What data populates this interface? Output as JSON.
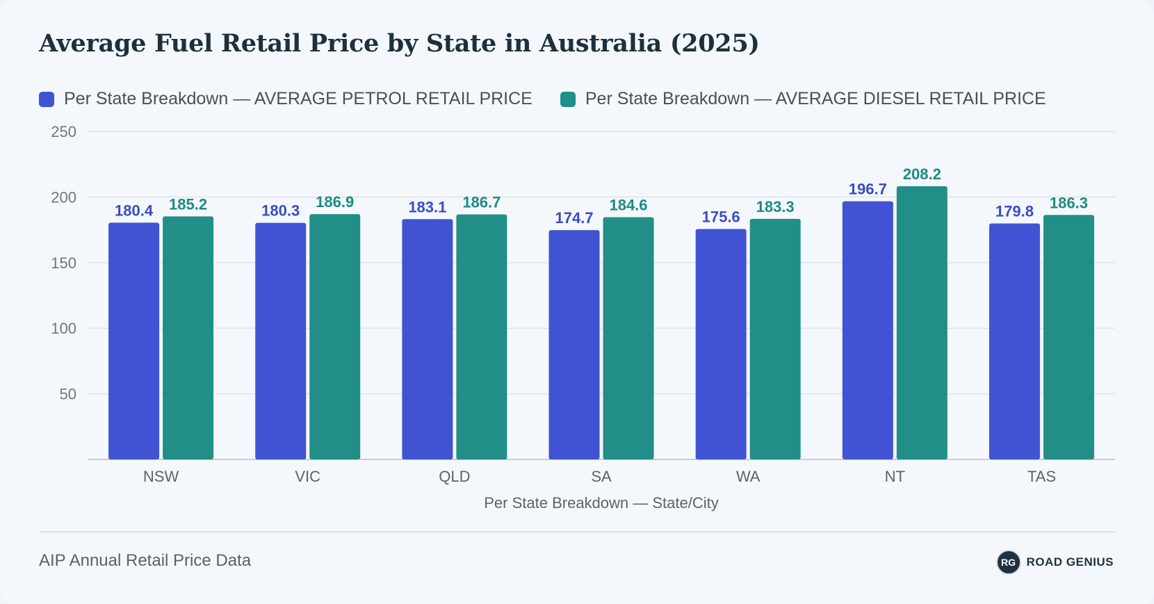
{
  "title": "Average Fuel Retail Price by State in Australia (2025)",
  "legend": [
    {
      "label": "Per State Breakdown — AVERAGE PETROL RETAIL PRICE",
      "color": "#4053d3"
    },
    {
      "label": "Per State Breakdown — AVERAGE DIESEL RETAIL PRICE",
      "color": "#218e88"
    }
  ],
  "footer": {
    "source": "AIP Annual Retail Price Data",
    "brand_logo": "RG",
    "brand_name": "ROAD GENIUS"
  },
  "chart_data": {
    "type": "bar",
    "title": "Average Fuel Retail Price by State in Australia (2025)",
    "xlabel": "Per State Breakdown — State/City",
    "ylabel": "",
    "categories": [
      "NSW",
      "VIC",
      "QLD",
      "SA",
      "WA",
      "NT",
      "TAS"
    ],
    "ylim": [
      0,
      250
    ],
    "yticks": [
      50,
      100,
      150,
      200,
      250
    ],
    "grid": true,
    "legend_position": "top-left",
    "series": [
      {
        "name": "Per State Breakdown — AVERAGE PETROL RETAIL PRICE",
        "color": "#4053d3",
        "label_color": "#3a4bc4",
        "values": [
          180.4,
          180.3,
          183.1,
          174.7,
          175.6,
          196.7,
          179.8
        ]
      },
      {
        "name": "Per State Breakdown — AVERAGE DIESEL RETAIL PRICE",
        "color": "#218e88",
        "label_color": "#1d8a82",
        "values": [
          185.2,
          186.9,
          186.7,
          184.6,
          183.3,
          208.2,
          186.3
        ]
      }
    ]
  }
}
